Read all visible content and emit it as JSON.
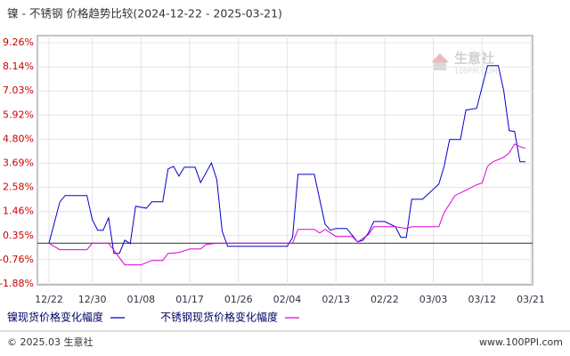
{
  "chart_data": {
    "type": "line",
    "title": "镍 - 不锈钢 价格趋势比较(2024-12-22 - 2025-03-21)",
    "xlim": [
      "12/22",
      "03/21"
    ],
    "xticks": [
      "12/22",
      "12/30",
      "01/08",
      "01/17",
      "01/26",
      "02/04",
      "02/13",
      "02/22",
      "03/03",
      "03/12",
      "03/21"
    ],
    "ylim": [
      -1.88,
      9.26
    ],
    "yticks": [
      {
        "value": 9.26,
        "label": "9.26%"
      },
      {
        "value": 8.14,
        "label": "8.14%"
      },
      {
        "value": 7.03,
        "label": "7.03%"
      },
      {
        "value": 5.92,
        "label": "5.92%"
      },
      {
        "value": 4.8,
        "label": "4.80%"
      },
      {
        "value": 3.69,
        "label": "3.69%"
      },
      {
        "value": 2.58,
        "label": "2.58%"
      },
      {
        "value": 1.46,
        "label": "1.46%"
      },
      {
        "value": 0.35,
        "label": "0.35%"
      },
      {
        "value": -0.76,
        "label": "-0.76%"
      },
      {
        "value": -1.88,
        "label": "-1.88%"
      }
    ],
    "grid": true,
    "series": [
      {
        "name": "镍现货价格变化幅度",
        "color": "#0000cc",
        "x": [
          "12/22",
          "12/24",
          "12/25",
          "12/29",
          "12/30",
          "12/31",
          "01/01",
          "01/02",
          "01/03",
          "01/04",
          "01/05",
          "01/06",
          "01/07",
          "01/09",
          "01/10",
          "01/12",
          "01/13",
          "01/14",
          "01/15",
          "01/16",
          "01/18",
          "01/19",
          "01/21",
          "01/22",
          "01/23",
          "01/24",
          "02/04",
          "02/05",
          "02/06",
          "02/09",
          "02/10",
          "02/11",
          "02/12",
          "02/13",
          "02/15",
          "02/17",
          "02/18",
          "02/19",
          "02/20",
          "02/22",
          "02/24",
          "02/25",
          "02/26",
          "02/27",
          "03/01",
          "03/04",
          "03/05",
          "03/06",
          "03/08",
          "03/09",
          "03/11",
          "03/13",
          "03/15",
          "03/16",
          "03/17",
          "03/18",
          "03/19",
          "03/20"
        ],
        "values": [
          0,
          1.91,
          2.2,
          2.2,
          1.09,
          0.6,
          0.6,
          1.17,
          -0.47,
          -0.47,
          0.14,
          -0.02,
          1.71,
          1.62,
          1.91,
          1.91,
          3.43,
          3.55,
          3.1,
          3.51,
          3.51,
          2.8,
          3.71,
          2.94,
          0.55,
          -0.14,
          -0.14,
          0.27,
          3.18,
          3.18,
          2.03,
          0.88,
          0.6,
          0.68,
          0.68,
          0.06,
          0.14,
          0.47,
          1.0,
          1.0,
          0.76,
          0.27,
          0.27,
          2.03,
          2.03,
          2.73,
          3.55,
          4.79,
          4.79,
          6.15,
          6.23,
          8.2,
          8.2,
          7.05,
          5.2,
          5.16,
          3.76,
          3.76
        ]
      },
      {
        "name": "不锈钢现货价格变化幅度",
        "color": "#dd00dd",
        "x": [
          "12/22",
          "12/24",
          "12/29",
          "12/30",
          "01/02",
          "01/05",
          "01/08",
          "01/10",
          "01/12",
          "01/13",
          "01/15",
          "01/17",
          "01/19",
          "01/20",
          "01/22",
          "02/05",
          "02/06",
          "02/09",
          "02/10",
          "02/11",
          "02/13",
          "02/16",
          "02/17",
          "02/19",
          "02/20",
          "02/24",
          "02/26",
          "02/27",
          "03/04",
          "03/05",
          "03/07",
          "03/09",
          "03/11",
          "03/12",
          "03/13",
          "03/14",
          "03/16",
          "03/17",
          "03/18",
          "03/19",
          "03/20"
        ],
        "values": [
          0,
          -0.3,
          -0.3,
          0,
          0,
          -1.0,
          -1.0,
          -0.8,
          -0.8,
          -0.47,
          -0.43,
          -0.27,
          -0.27,
          -0.06,
          0,
          0,
          0.64,
          0.64,
          0.47,
          0.64,
          0.31,
          0.31,
          0.06,
          0.39,
          0.76,
          0.76,
          0.68,
          0.76,
          0.76,
          1.42,
          2.2,
          2.45,
          2.7,
          2.78,
          3.55,
          3.76,
          3.97,
          4.17,
          4.58,
          4.46,
          4.38
        ]
      }
    ]
  },
  "watermark": {
    "name": "生意社",
    "site": "100PPI.COM"
  },
  "footer": {
    "copyright": "© 2025.03 生意社",
    "site": "www.100PPI.com"
  }
}
